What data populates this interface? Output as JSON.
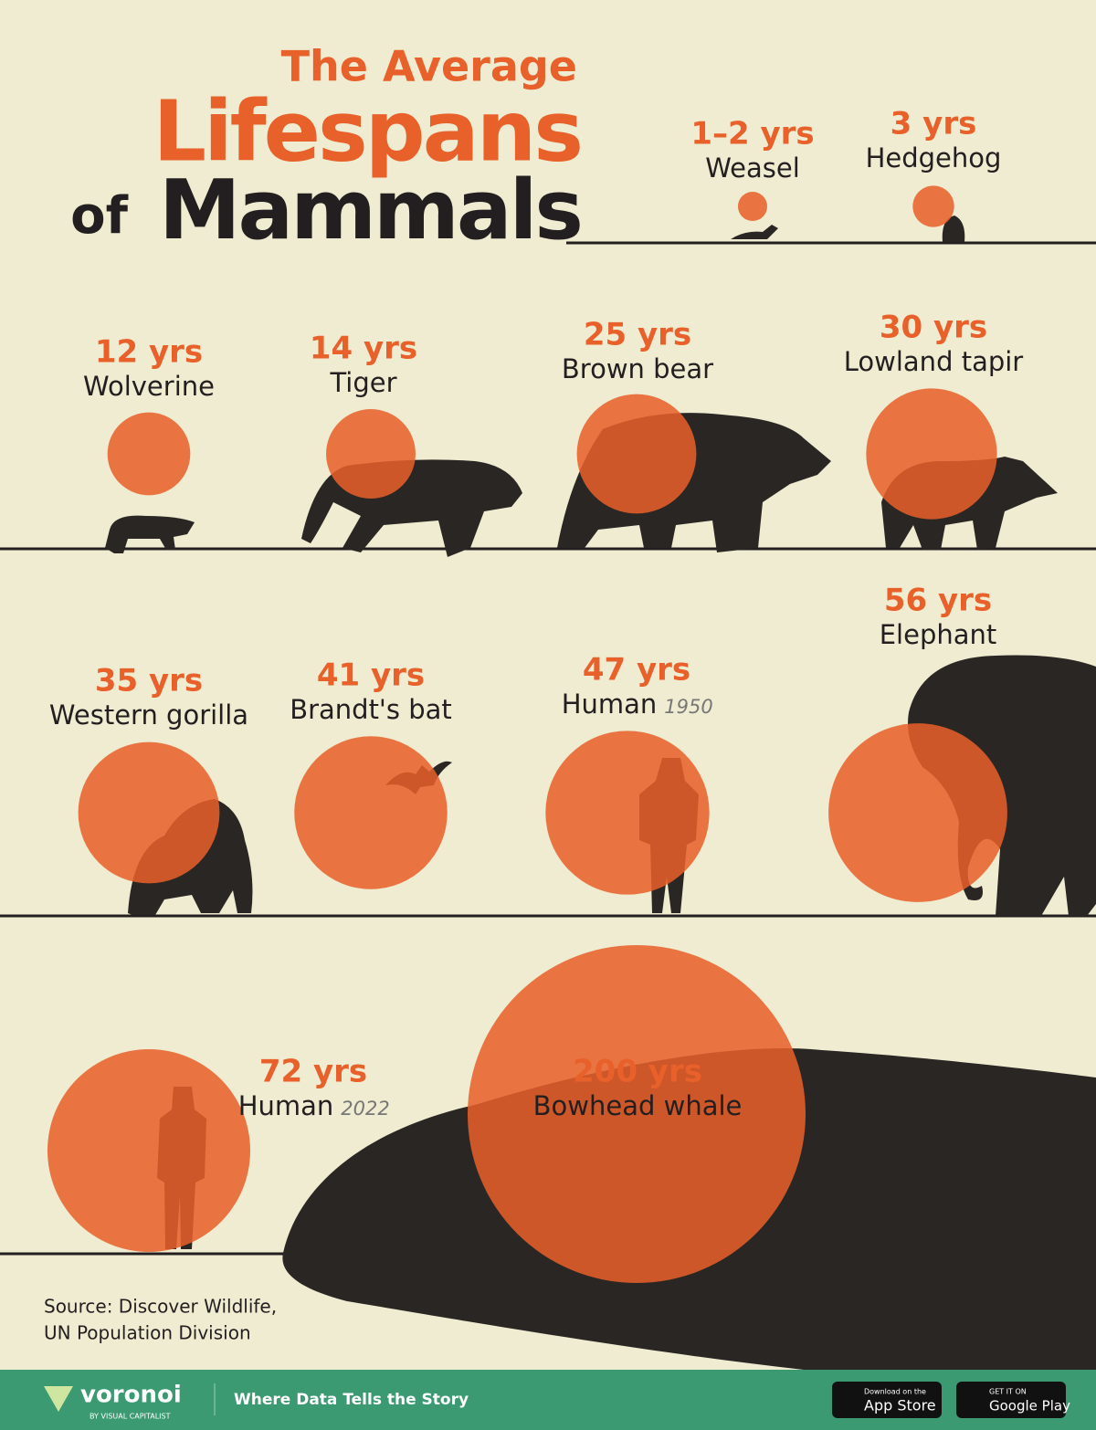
{
  "chart_data": {
    "type": "bubble",
    "title": [
      "The Average",
      "Lifespans",
      "of",
      "Mammals"
    ],
    "categories": [
      "Weasel",
      "Hedgehog",
      "Wolverine",
      "Tiger",
      "Brown bear",
      "Lowland tapir",
      "Western gorilla",
      "Brandt's bat",
      "Human",
      "Elephant",
      "Human",
      "Bowhead whale"
    ],
    "notes": [
      null,
      null,
      null,
      null,
      null,
      null,
      null,
      null,
      "1950",
      null,
      "2022",
      null
    ],
    "values": [
      1.5,
      3,
      12,
      14,
      25,
      30,
      35,
      41,
      47,
      56,
      72,
      200
    ],
    "value_labels": [
      "1–2 yrs",
      "3 yrs",
      "12 yrs",
      "14 yrs",
      "25 yrs",
      "30 yrs",
      "35 yrs",
      "41 yrs",
      "47 yrs",
      "56 yrs",
      "72 yrs",
      "200 yrs"
    ],
    "color": "#e8602a",
    "source": [
      "Source: Discover Wildlife,",
      "UN Population Division"
    ]
  },
  "footer": {
    "brand": "voronoi",
    "brand_sub": "BY VISUAL CAPITALIST",
    "tagline": "Where Data Tells the Story",
    "app_store": [
      "Download on the",
      "App Store"
    ],
    "google_play": [
      "GET IT ON",
      "Google Play"
    ]
  }
}
